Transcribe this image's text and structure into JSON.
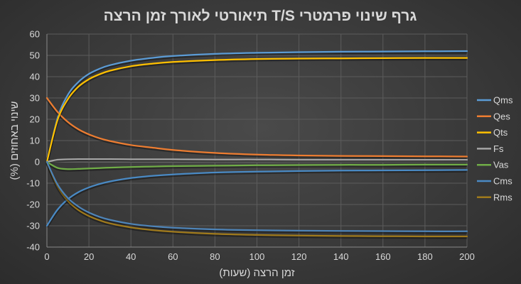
{
  "chart_data": {
    "type": "line",
    "title": "גרף שינוי פרמטרי T/S תיאורטי לאורך זמן הרצה",
    "xlabel": "זמן הרצה (שעות)",
    "ylabel": "שינוי באחוזים (%)",
    "xlim": [
      0,
      200
    ],
    "ylim": [
      -40,
      60
    ],
    "x_ticks": [
      0,
      20,
      40,
      60,
      80,
      100,
      120,
      140,
      160,
      180,
      200
    ],
    "y_ticks": [
      60,
      50,
      40,
      30,
      20,
      10,
      0,
      -10,
      -20,
      -30,
      -40
    ],
    "grid": true,
    "legend_position": "right",
    "x": [
      0,
      5,
      10,
      15,
      20,
      25,
      30,
      40,
      50,
      60,
      80,
      100,
      120,
      140,
      160,
      180,
      200
    ],
    "series": [
      {
        "name": "Qms",
        "color": "#5b9bd5",
        "values": [
          0,
          20.5,
          31.5,
          37.5,
          41.3,
          43.7,
          45.4,
          47.5,
          48.8,
          49.7,
          50.7,
          51.2,
          51.5,
          51.7,
          51.8,
          51.9,
          52
        ]
      },
      {
        "name": "Qes",
        "color": "#ed7d31",
        "values": [
          30,
          23.5,
          18.7,
          15.3,
          12.9,
          11.1,
          9.8,
          7.9,
          6.7,
          5.6,
          4.2,
          3.4,
          3.0,
          2.8,
          2.7,
          2.6,
          2.5
        ]
      },
      {
        "name": "Qts",
        "color": "#ffc000",
        "values": [
          0,
          19.5,
          29.5,
          35.3,
          38.8,
          41.1,
          42.8,
          44.9,
          46.1,
          46.9,
          47.8,
          48.3,
          48.5,
          48.6,
          48.7,
          48.8,
          48.8
        ]
      },
      {
        "name": "Fs",
        "color": "#a5a5a5",
        "values": [
          0,
          1.0,
          1.2,
          1.3,
          1.3,
          1.3,
          1.3,
          1.2,
          1.2,
          1.2,
          1.1,
          1.1,
          1.0,
          1.0,
          1.0,
          1.0,
          1.0
        ]
      },
      {
        "name": "Vas",
        "color": "#70ad47",
        "values": [
          0,
          -2.8,
          -3.4,
          -3.3,
          -3.1,
          -2.9,
          -2.7,
          -2.4,
          -2.2,
          -2.0,
          -1.8,
          -1.6,
          -1.5,
          -1.4,
          -1.4,
          -1.3,
          -1.3
        ]
      },
      {
        "name": "Cms",
        "color": "#4a8ac4",
        "values": [
          -30,
          -22.5,
          -17.5,
          -14.2,
          -12.0,
          -10.4,
          -9.2,
          -7.6,
          -6.6,
          -5.9,
          -5.0,
          -4.6,
          -4.3,
          -4.1,
          -4.0,
          -3.9,
          -3.8
        ]
      },
      {
        "name": "Rms",
        "color": "#a07a1c",
        "values": [
          0,
          -11.5,
          -18.3,
          -22.6,
          -25.4,
          -27.4,
          -28.9,
          -30.8,
          -32.0,
          -32.8,
          -33.8,
          -34.3,
          -34.6,
          -34.8,
          -34.9,
          -35.0,
          -35.0
        ]
      },
      {
        "name": "",
        "color": "#4e84b8",
        "values": [
          0,
          -10.5,
          -17.0,
          -21.0,
          -23.8,
          -25.8,
          -27.2,
          -29.1,
          -30.2,
          -30.9,
          -31.7,
          -32.1,
          -32.3,
          -32.4,
          -32.5,
          -32.6,
          -32.6
        ]
      }
    ]
  }
}
